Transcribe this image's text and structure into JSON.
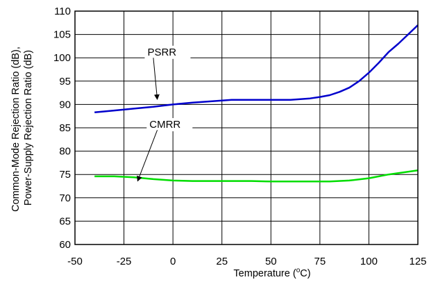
{
  "chart_data": {
    "type": "line",
    "title": "",
    "xlabel": "Temperature (",
    "xlabel_sup": "o",
    "xlabel_tail": "C)",
    "ylabel_lines": [
      "Common-Mode Rejection Ratio (dB),",
      "Power-Supply Rejection Ratio (dB)"
    ],
    "xlim": [
      -50,
      125
    ],
    "ylim": [
      60,
      110
    ],
    "xticks": [
      -50,
      -25,
      0,
      25,
      50,
      75,
      100,
      125
    ],
    "yticks": [
      60,
      65,
      70,
      75,
      80,
      85,
      90,
      95,
      100,
      105,
      110
    ],
    "grid": true,
    "legend": "none",
    "series": [
      {
        "name": "PSRR",
        "color": "#0000cc",
        "x": [
          -40,
          -30,
          -20,
          -10,
          0,
          10,
          20,
          30,
          40,
          50,
          60,
          70,
          75,
          80,
          85,
          90,
          95,
          100,
          105,
          110,
          115,
          120,
          125
        ],
        "y": [
          88.3,
          88.7,
          89.1,
          89.5,
          90.0,
          90.4,
          90.7,
          91.0,
          91.0,
          91.0,
          91.0,
          91.3,
          91.6,
          92.0,
          92.7,
          93.6,
          95.0,
          96.8,
          98.9,
          101.2,
          103.0,
          105.0,
          107.0
        ]
      },
      {
        "name": "CMRR",
        "color": "#00dd00",
        "x": [
          -40,
          -30,
          -20,
          -10,
          0,
          10,
          20,
          30,
          40,
          50,
          60,
          70,
          80,
          90,
          100,
          110,
          120,
          125
        ],
        "y": [
          74.6,
          74.6,
          74.4,
          74.0,
          73.7,
          73.6,
          73.6,
          73.6,
          73.6,
          73.5,
          73.5,
          73.5,
          73.5,
          73.7,
          74.2,
          75.0,
          75.6,
          75.9
        ]
      }
    ],
    "annotations": [
      {
        "text": "PSRR",
        "label_at": [
          -13,
          100.5
        ],
        "arrow_from": [
          -10,
          100
        ],
        "arrow_to": [
          -8,
          91.1
        ]
      },
      {
        "text": "CMRR",
        "label_at": [
          -12,
          85.0
        ],
        "arrow_from": [
          -8,
          84.5
        ],
        "arrow_to": [
          -18,
          73.6
        ]
      }
    ]
  }
}
